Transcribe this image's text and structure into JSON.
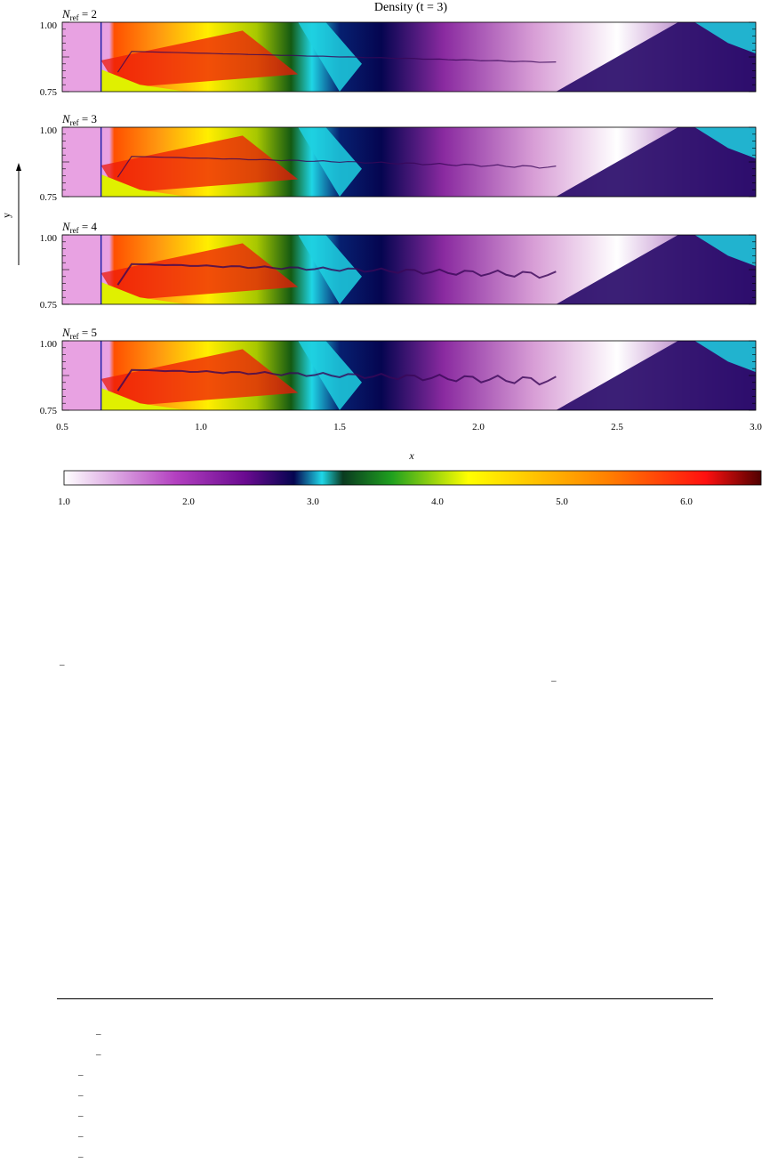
{
  "figure": {
    "title": "Density (t = 3)",
    "panels": [
      {
        "label_prefix": "N",
        "label_sub": "ref",
        "label_suffix": " = 2",
        "variant": 0
      },
      {
        "label_prefix": "N",
        "label_sub": "ref",
        "label_suffix": " = 3",
        "variant": 1
      },
      {
        "label_prefix": "N",
        "label_sub": "ref",
        "label_suffix": " = 4",
        "variant": 2
      },
      {
        "label_prefix": "N",
        "label_sub": "ref",
        "label_suffix": " = 5",
        "variant": 3
      }
    ],
    "y_tick_top": "1.00",
    "y_tick_bottom": "0.75",
    "y_axis_label": "y",
    "x_axis_label": "x",
    "x_ticks": [
      "0.5",
      "1.0",
      "1.5",
      "2.0",
      "2.5",
      "3.0"
    ],
    "x_range": [
      0.5,
      3.0
    ],
    "y_range": [
      0.75,
      1.0
    ],
    "colorbar": {
      "ticks": [
        "1.0",
        "2.0",
        "3.0",
        "4.0",
        "5.0",
        "6.0"
      ],
      "range": [
        1.0,
        6.6
      ],
      "colors": {
        "white": "#ffffff",
        "magenta": "#a019b0",
        "navy": "#050550",
        "cyan": "#1fd8e8",
        "dark_green": "#0a2a0a",
        "green": "#1fa01f",
        "yellow": "#ffff00",
        "orange": "#ff8000",
        "red": "#ff1010",
        "dark_red": "#500000"
      }
    }
  },
  "text_fragments": [
    "–",
    "–",
    "–",
    "–",
    "–",
    "–",
    "–",
    "–",
    "–",
    "–"
  ]
}
